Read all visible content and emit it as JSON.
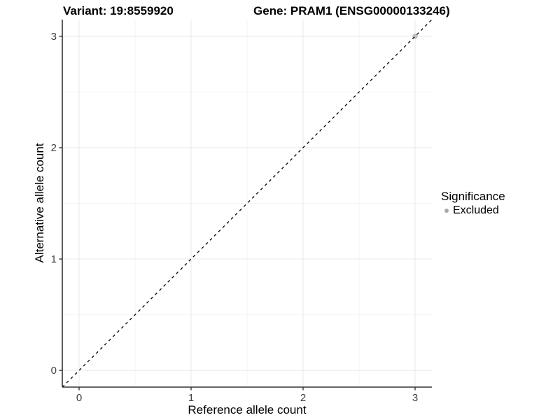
{
  "header": {
    "variant_title": "Variant: 19:8559920",
    "gene_title": "Gene: PRAM1 (ENSG00000133246)"
  },
  "chart_data": {
    "type": "scatter",
    "xlabel": "Reference allele count",
    "ylabel": "Alternative allele count",
    "x_ticks": [
      0,
      1,
      2,
      3
    ],
    "y_ticks": [
      0,
      1,
      2,
      3
    ],
    "xlim": [
      -0.15,
      3.15
    ],
    "ylim": [
      -0.15,
      3.15
    ],
    "grid": {
      "major": true,
      "minor": true
    },
    "points": [
      {
        "x": 3,
        "y": 3,
        "significance": "Excluded"
      }
    ],
    "reference_line": {
      "type": "identity",
      "from": [
        -0.15,
        -0.15
      ],
      "to": [
        3.15,
        3.15
      ],
      "style": "dashed",
      "color": "#000000"
    },
    "legend_position": "right",
    "colors": {
      "excluded_point": "#c0c0c0",
      "legend_point": "#a8a8a8",
      "grid_major": "#e8e8e8",
      "grid_minor": "#f4f4f4",
      "axis_line": "#333333",
      "tick_text": "#404040"
    }
  },
  "legend": {
    "title": "Significance",
    "items": [
      {
        "label": "Excluded"
      }
    ]
  }
}
